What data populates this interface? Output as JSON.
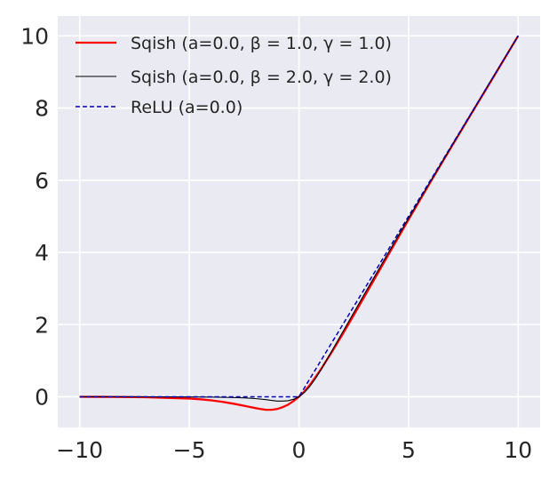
{
  "chart_data": {
    "type": "line",
    "xlim": [
      -11,
      11
    ],
    "ylim": [
      -0.85,
      10.55
    ],
    "xticks": [
      -10,
      -5,
      0,
      5,
      10
    ],
    "xtick_labels": [
      "−10",
      "−5",
      "0",
      "5",
      "10"
    ],
    "yticks": [
      0,
      2,
      4,
      6,
      8,
      10
    ],
    "ytick_labels": [
      "0",
      "2",
      "4",
      "6",
      "8",
      "10"
    ],
    "grid": true,
    "background_color": "#eaeaf2",
    "legend_position": "top-left",
    "series": [
      {
        "name": "Sqish (a=0.0, β = 1.0, γ = 1.0)",
        "color": "#ff0000",
        "style": "solid",
        "x": [
          -10,
          -9,
          -8,
          -7,
          -6,
          -5,
          -4.5,
          -4,
          -3.5,
          -3,
          -2.5,
          -2,
          -1.75,
          -1.5,
          -1.25,
          -1,
          -0.75,
          -0.5,
          -0.25,
          0,
          0.25,
          0.5,
          0.75,
          1,
          1.5,
          2,
          2.5,
          3,
          4,
          5,
          6,
          7,
          8,
          9,
          10
        ],
        "y": [
          0,
          -0.002,
          -0.006,
          -0.013,
          -0.03,
          -0.05,
          -0.07,
          -0.1,
          -0.14,
          -0.19,
          -0.25,
          -0.31,
          -0.34,
          -0.36,
          -0.36,
          -0.34,
          -0.29,
          -0.22,
          -0.12,
          0,
          0.15,
          0.33,
          0.54,
          0.76,
          1.24,
          1.74,
          2.26,
          2.79,
          3.85,
          4.91,
          5.95,
          6.97,
          7.98,
          8.99,
          10
        ]
      },
      {
        "name": "Sqish (a=0.0, β = 2.0, γ = 2.0)",
        "color": "#000000",
        "style": "solid",
        "x": [
          -10,
          -8,
          -6,
          -5,
          -4,
          -3,
          -2.5,
          -2,
          -1.5,
          -1.25,
          -1,
          -0.75,
          -0.5,
          -0.25,
          0,
          0.25,
          0.5,
          0.75,
          1,
          1.5,
          2,
          3,
          4,
          5,
          6,
          7,
          8,
          9,
          10
        ],
        "y": [
          0,
          0,
          -0.002,
          -0.004,
          -0.008,
          -0.02,
          -0.03,
          -0.05,
          -0.08,
          -0.1,
          -0.12,
          -0.12,
          -0.11,
          -0.07,
          0,
          0.12,
          0.29,
          0.5,
          0.74,
          1.27,
          1.8,
          2.86,
          3.91,
          4.95,
          5.97,
          6.98,
          7.99,
          9,
          10
        ]
      },
      {
        "name": "ReLU (a=0.0)",
        "color": "#0000b4",
        "style": "dashed",
        "x": [
          -10,
          0,
          10
        ],
        "y": [
          0,
          0,
          10
        ]
      }
    ]
  }
}
